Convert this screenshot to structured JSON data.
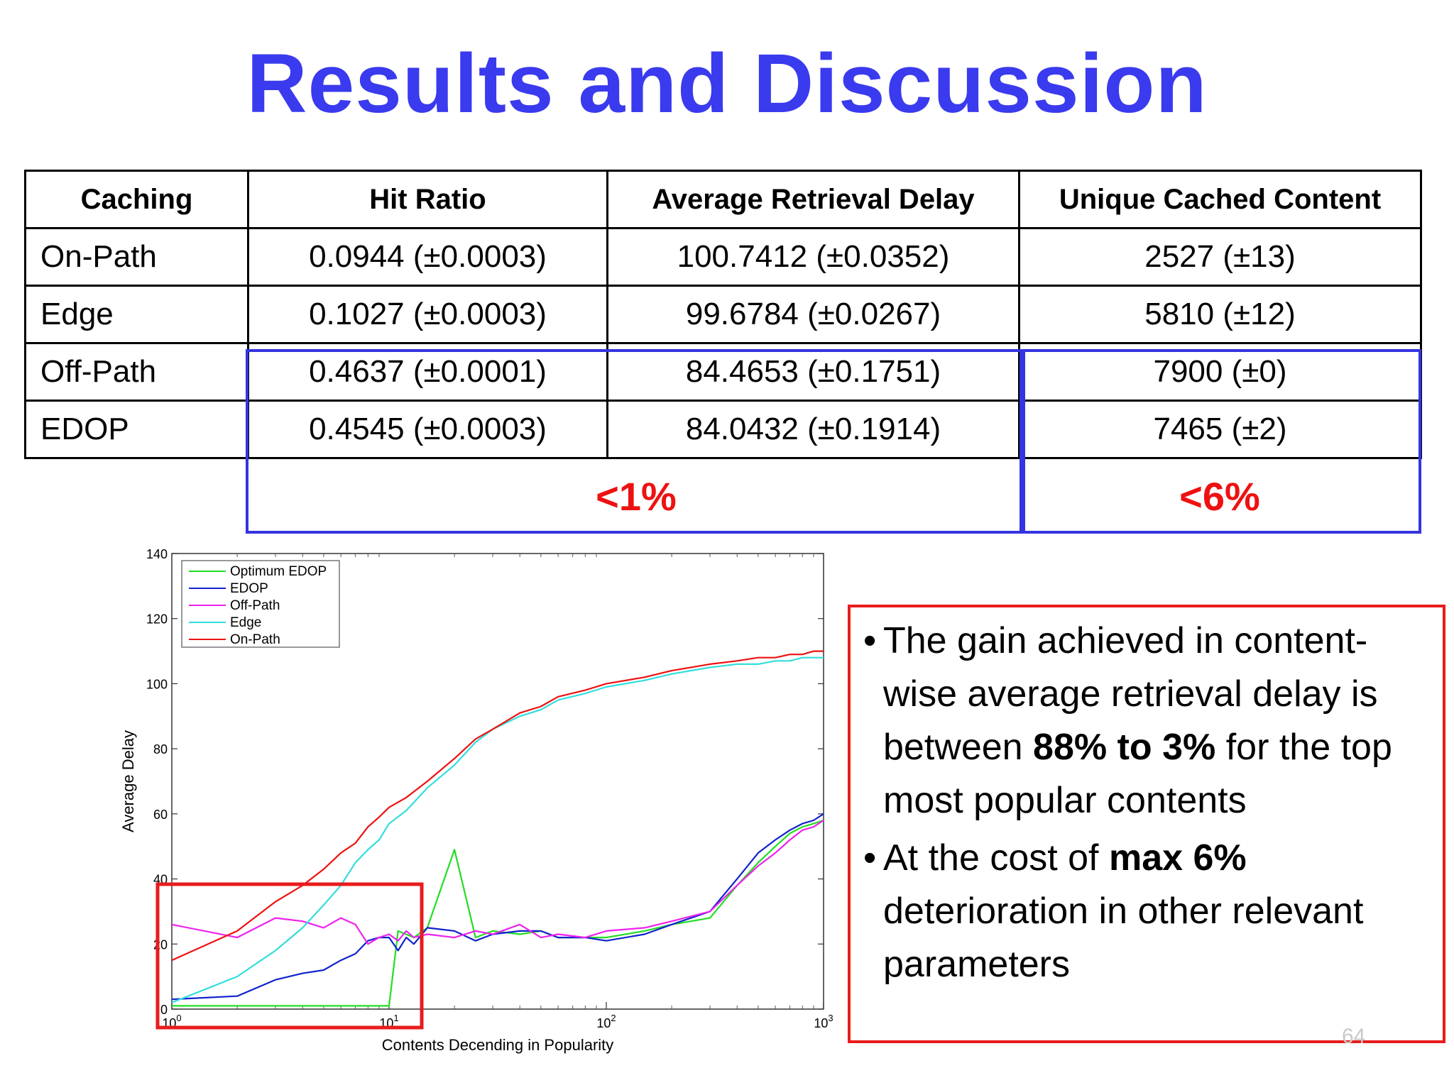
{
  "title": "Results and Discussion",
  "table": {
    "headers": [
      "Caching",
      "Hit Ratio",
      "Average Retrieval Delay",
      "Unique Cached Content"
    ],
    "rows": [
      [
        "On-Path",
        "0.0944 (±0.0003)",
        "100.7412 (±0.0352)",
        "2527 (±13)"
      ],
      [
        "Edge",
        "0.1027 (±0.0003)",
        "99.6784 (±0.0267)",
        "5810 (±12)"
      ],
      [
        "Off-Path",
        "0.4637 (±0.0001)",
        "84.4653 (±0.1751)",
        "7900 (±0)"
      ],
      [
        "EDOP",
        "0.4545 (±0.0003)",
        "84.0432 (±0.1914)",
        "7465 (±2)"
      ]
    ],
    "highlight_1_label": "<1%",
    "highlight_2_label": "<6%"
  },
  "bullets": [
    {
      "pre": "The gain achieved in content-wise average retrieval delay is between ",
      "bold": "88% to 3%",
      "post": " for the top most popular contents"
    },
    {
      "pre": "At the cost of ",
      "bold": "max 6%",
      "post": " deterioration in other relevant parameters"
    }
  ],
  "page_number": "64",
  "colors": {
    "title": "#3a3aee",
    "highlight_blue": "#3434e0",
    "highlight_red": "#e81c1c",
    "percent_red": "#ee1111"
  },
  "chart_data": {
    "type": "line",
    "xlabel": "Contents Decending in Popularity",
    "ylabel": "Average Delay",
    "x_scale": "log",
    "xlim": [
      1,
      1000
    ],
    "ylim": [
      0,
      140
    ],
    "x_ticks": [
      {
        "base": "10",
        "exp": "0",
        "value": 1
      },
      {
        "base": "10",
        "exp": "1",
        "value": 10
      },
      {
        "base": "10",
        "exp": "2",
        "value": 100
      },
      {
        "base": "10",
        "exp": "3",
        "value": 1000
      }
    ],
    "y_ticks": [
      0,
      20,
      40,
      60,
      80,
      100,
      120,
      140
    ],
    "legend_position": "top-left",
    "series": [
      {
        "name": "Optimum EDOP",
        "color": "#22dd22",
        "x": [
          1,
          2,
          5,
          9,
          10,
          11,
          13,
          15,
          20,
          25,
          30,
          40,
          50,
          60,
          80,
          100,
          150,
          200,
          300,
          400,
          500,
          600,
          700,
          800,
          900,
          1000
        ],
        "y": [
          1,
          1,
          1,
          1,
          1,
          24,
          22,
          25,
          49,
          22,
          24,
          23,
          24,
          22,
          22,
          22,
          24,
          26,
          28,
          38,
          45,
          50,
          54,
          56,
          57,
          58
        ]
      },
      {
        "name": "EDOP",
        "color": "#1122cc",
        "x": [
          1,
          2,
          3,
          4,
          5,
          6,
          7,
          8,
          9,
          10,
          11,
          12,
          13,
          15,
          20,
          25,
          30,
          40,
          50,
          60,
          80,
          100,
          150,
          200,
          300,
          400,
          500,
          600,
          700,
          800,
          900,
          1000
        ],
        "y": [
          3,
          4,
          9,
          11,
          12,
          15,
          17,
          21,
          22,
          22,
          18,
          22,
          20,
          25,
          24,
          21,
          23,
          24,
          24,
          22,
          22,
          21,
          23,
          26,
          30,
          40,
          48,
          52,
          55,
          57,
          58,
          60
        ]
      },
      {
        "name": "Off-Path",
        "color": "#ee22ee",
        "x": [
          1,
          2,
          3,
          4,
          5,
          6,
          7,
          8,
          9,
          10,
          11,
          12,
          13,
          15,
          20,
          25,
          30,
          40,
          50,
          60,
          80,
          100,
          150,
          200,
          300,
          400,
          500,
          600,
          700,
          800,
          900,
          1000
        ],
        "y": [
          26,
          22,
          28,
          27,
          25,
          28,
          26,
          20,
          22,
          23,
          21,
          24,
          22,
          23,
          22,
          24,
          23,
          26,
          22,
          23,
          22,
          24,
          25,
          27,
          30,
          38,
          44,
          48,
          52,
          55,
          56,
          58
        ]
      },
      {
        "name": "Edge",
        "color": "#33dddd",
        "x": [
          1,
          2,
          3,
          4,
          5,
          6,
          7,
          8,
          9,
          10,
          12,
          15,
          20,
          25,
          30,
          40,
          50,
          60,
          80,
          100,
          150,
          200,
          300,
          400,
          500,
          600,
          700,
          800,
          900,
          1000
        ],
        "y": [
          2,
          10,
          18,
          25,
          32,
          38,
          45,
          49,
          52,
          57,
          61,
          68,
          75,
          82,
          86,
          90,
          92,
          95,
          97,
          99,
          101,
          103,
          105,
          106,
          106,
          107,
          107,
          108,
          108,
          108
        ]
      },
      {
        "name": "On-Path",
        "color": "#ee1111",
        "x": [
          1,
          2,
          3,
          4,
          5,
          6,
          7,
          8,
          9,
          10,
          12,
          15,
          20,
          25,
          30,
          40,
          50,
          60,
          80,
          100,
          150,
          200,
          300,
          400,
          500,
          600,
          700,
          800,
          900,
          1000
        ],
        "y": [
          15,
          24,
          33,
          38,
          43,
          48,
          51,
          56,
          59,
          62,
          65,
          70,
          77,
          83,
          86,
          91,
          93,
          96,
          98,
          100,
          102,
          104,
          106,
          107,
          108,
          108,
          109,
          109,
          110,
          110
        ]
      }
    ]
  }
}
